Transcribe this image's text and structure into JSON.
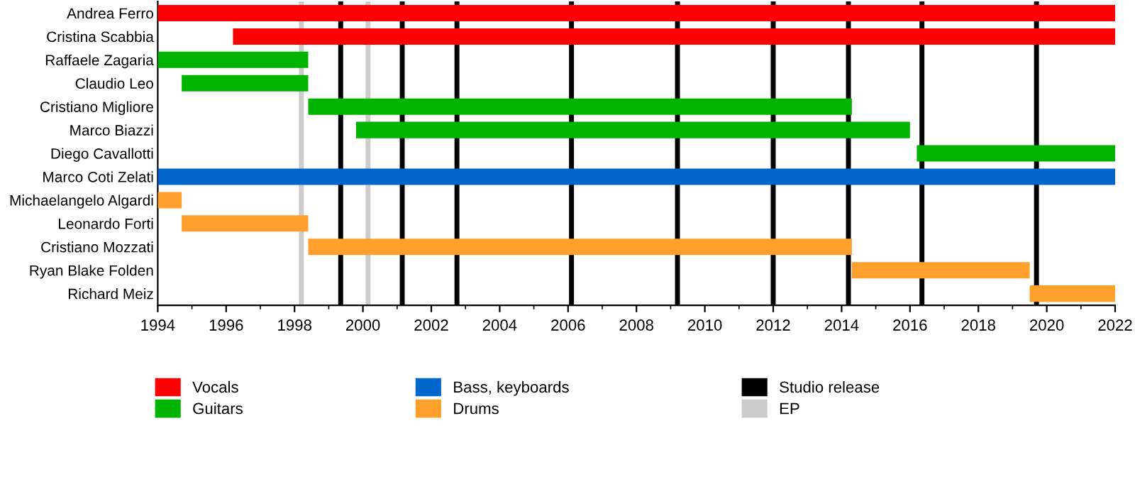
{
  "chart_data": {
    "type": "bar",
    "orientation": "horizontal",
    "categories": [
      "Andrea Ferro",
      "Cristina Scabbia",
      "Raffaele Zagaria",
      "Claudio Leo",
      "Cristiano Migliore",
      "Marco Biazzi",
      "Diego Cavallotti",
      "Marco Coti Zelati",
      "Michaelangelo Algardi",
      "Leonardo Forti",
      "Cristiano Mozzati",
      "Ryan Blake Folden",
      "Richard Meiz"
    ],
    "series": [
      {
        "name": "Vocals",
        "color": "#ff0000",
        "base": [
          1994,
          1996.2,
          null,
          null,
          null,
          null,
          null,
          null,
          null,
          null,
          null,
          null,
          null
        ],
        "values": [
          28,
          25.8,
          null,
          null,
          null,
          null,
          null,
          null,
          null,
          null,
          null,
          null,
          null
        ]
      },
      {
        "name": "Guitars",
        "color": "#00b400",
        "base": [
          null,
          null,
          1994,
          1994.7,
          1998.4,
          1999.8,
          2016.2,
          null,
          null,
          null,
          null,
          null,
          null
        ],
        "values": [
          null,
          null,
          4.4,
          3.7,
          15.9,
          16.2,
          5.8,
          null,
          null,
          null,
          null,
          null,
          null
        ]
      },
      {
        "name": "Bass, keyboards",
        "color": "#0066cc",
        "base": [
          null,
          null,
          null,
          null,
          null,
          null,
          null,
          1994,
          null,
          null,
          null,
          null,
          null
        ],
        "values": [
          null,
          null,
          null,
          null,
          null,
          null,
          null,
          28,
          null,
          null,
          null,
          null,
          null
        ]
      },
      {
        "name": "Drums",
        "color": "#ffa02c",
        "base": [
          null,
          null,
          null,
          null,
          null,
          null,
          null,
          null,
          1994,
          1994.7,
          1998.4,
          2014.3,
          2019.5
        ],
        "values": [
          null,
          null,
          null,
          null,
          null,
          null,
          null,
          null,
          0.7,
          3.7,
          15.9,
          5.2,
          2.5
        ]
      }
    ],
    "ref_lines": [
      {
        "axis": "x",
        "value": 1998.2,
        "label": "EP",
        "color": "#cccccc"
      },
      {
        "axis": "x",
        "value": 1999.35,
        "label": "Studio release",
        "color": "#000000"
      },
      {
        "axis": "x",
        "value": 2000.15,
        "color": "#cccccc"
      },
      {
        "axis": "x",
        "value": 2001.15,
        "color": "#000000"
      },
      {
        "axis": "x",
        "value": 2002.75,
        "color": "#000000"
      },
      {
        "axis": "x",
        "value": 2006.1,
        "color": "#000000"
      },
      {
        "axis": "x",
        "value": 2009.2,
        "color": "#000000"
      },
      {
        "axis": "x",
        "value": 2012.0,
        "color": "#000000"
      },
      {
        "axis": "x",
        "value": 2014.2,
        "color": "#000000"
      },
      {
        "axis": "x",
        "value": 2016.35,
        "color": "#000000"
      },
      {
        "axis": "x",
        "value": 2019.7,
        "color": "#000000"
      }
    ],
    "xlim": [
      1994,
      2022
    ],
    "xticks": [
      1994,
      1996,
      1998,
      2000,
      2002,
      2004,
      2006,
      2008,
      2010,
      2012,
      2014,
      2016,
      2018,
      2020,
      2022
    ],
    "grid": false,
    "legend": "bottom"
  }
}
